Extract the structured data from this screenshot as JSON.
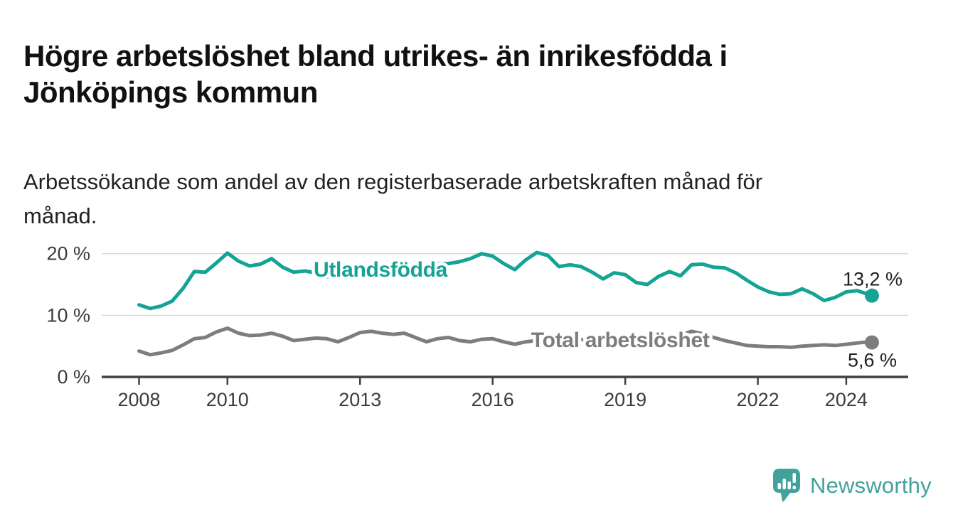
{
  "title": {
    "lines": [
      "Högre arbetslöshet bland utrikes- än inrikesfödda i",
      "Jönköpings kommun"
    ]
  },
  "subtitle": {
    "lines": [
      "Arbetssökande som andel av den registerbaserade arbetskraften månad för",
      "månad."
    ]
  },
  "logo": {
    "text": "Newsworthy",
    "icon": "newsworthy-speech-bubble-chart-icon",
    "color": "#42a29b"
  },
  "chart_data": {
    "type": "line",
    "unit": "%",
    "grid": "horizontal",
    "xlim": [
      2008,
      2024.6
    ],
    "ylim": [
      0,
      22
    ],
    "xticks": [
      2008,
      2010,
      2013,
      2016,
      2019,
      2022,
      2024
    ],
    "xtick_labels": [
      "2008",
      "2010",
      "2013",
      "2016",
      "2019",
      "2022",
      "2024"
    ],
    "yticks": [
      {
        "value": 0,
        "label": "0 %"
      },
      {
        "value": 10,
        "label": "10 %"
      },
      {
        "value": 20,
        "label": "20 %"
      }
    ],
    "x": [
      2008.0,
      2008.25,
      2008.5,
      2008.75,
      2009.0,
      2009.25,
      2009.5,
      2009.75,
      2010.0,
      2010.25,
      2010.5,
      2010.75,
      2011.0,
      2011.25,
      2011.5,
      2011.75,
      2012.0,
      2012.25,
      2012.5,
      2012.75,
      2013.0,
      2013.25,
      2013.5,
      2013.75,
      2014.0,
      2014.25,
      2014.5,
      2014.75,
      2015.0,
      2015.25,
      2015.5,
      2015.75,
      2016.0,
      2016.25,
      2016.5,
      2016.75,
      2017.0,
      2017.25,
      2017.5,
      2017.75,
      2018.0,
      2018.25,
      2018.5,
      2018.75,
      2019.0,
      2019.25,
      2019.5,
      2019.75,
      2020.0,
      2020.25,
      2020.5,
      2020.75,
      2021.0,
      2021.25,
      2021.5,
      2021.75,
      2022.0,
      2022.25,
      2022.5,
      2022.75,
      2023.0,
      2023.25,
      2023.5,
      2023.75,
      2024.0,
      2024.25,
      2024.5,
      2024.58
    ],
    "series": [
      {
        "id": "utlandsfodda",
        "name": "Utlandsfödda",
        "color": "#14a394",
        "values": [
          11.7,
          11.1,
          11.5,
          12.3,
          14.4,
          17.1,
          17.0,
          18.5,
          20.1,
          18.8,
          18.0,
          18.3,
          19.2,
          17.8,
          17.0,
          17.2,
          16.9,
          16.2,
          16.9,
          17.1,
          17.3,
          17.5,
          17.3,
          17.6,
          17.8,
          18.0,
          18.2,
          18.3,
          18.4,
          18.7,
          19.2,
          20.0,
          19.6,
          18.4,
          17.4,
          19.0,
          20.2,
          19.7,
          17.9,
          18.2,
          17.9,
          17.0,
          15.9,
          16.9,
          16.6,
          15.3,
          15.0,
          16.3,
          17.1,
          16.4,
          18.2,
          18.3,
          17.8,
          17.7,
          16.9,
          15.7,
          14.6,
          13.8,
          13.4,
          13.5,
          14.3,
          13.5,
          12.4,
          12.9,
          13.8,
          14.0,
          13.4,
          13.2
        ],
        "inline_label": {
          "text": "Utlandsfödda",
          "x": 2011.95,
          "v": 16.3
        },
        "end_label": "13,2 %",
        "end_value": 13.2
      },
      {
        "id": "total",
        "name": "Total arbetslöshet",
        "color": "#7d7d7d",
        "values": [
          4.2,
          3.6,
          3.9,
          4.3,
          5.2,
          6.2,
          6.4,
          7.3,
          7.9,
          7.1,
          6.7,
          6.8,
          7.1,
          6.6,
          5.9,
          6.1,
          6.3,
          6.2,
          5.7,
          6.4,
          7.2,
          7.4,
          7.1,
          6.9,
          7.1,
          6.4,
          5.7,
          6.2,
          6.4,
          5.9,
          5.7,
          6.1,
          6.2,
          5.7,
          5.3,
          5.7,
          5.9,
          6.0,
          5.7,
          5.9,
          6.1,
          5.8,
          5.4,
          5.7,
          5.7,
          5.4,
          5.3,
          5.7,
          6.0,
          6.8,
          7.4,
          7.0,
          6.4,
          5.9,
          5.5,
          5.1,
          5.0,
          4.9,
          4.9,
          4.8,
          5.0,
          5.1,
          5.2,
          5.1,
          5.3,
          5.5,
          5.7,
          5.6
        ],
        "inline_label": {
          "text": "Total arbetslöshet",
          "x": 2016.87,
          "v": 4.85
        },
        "end_label": "5,6 %",
        "end_value": 5.6
      }
    ]
  }
}
